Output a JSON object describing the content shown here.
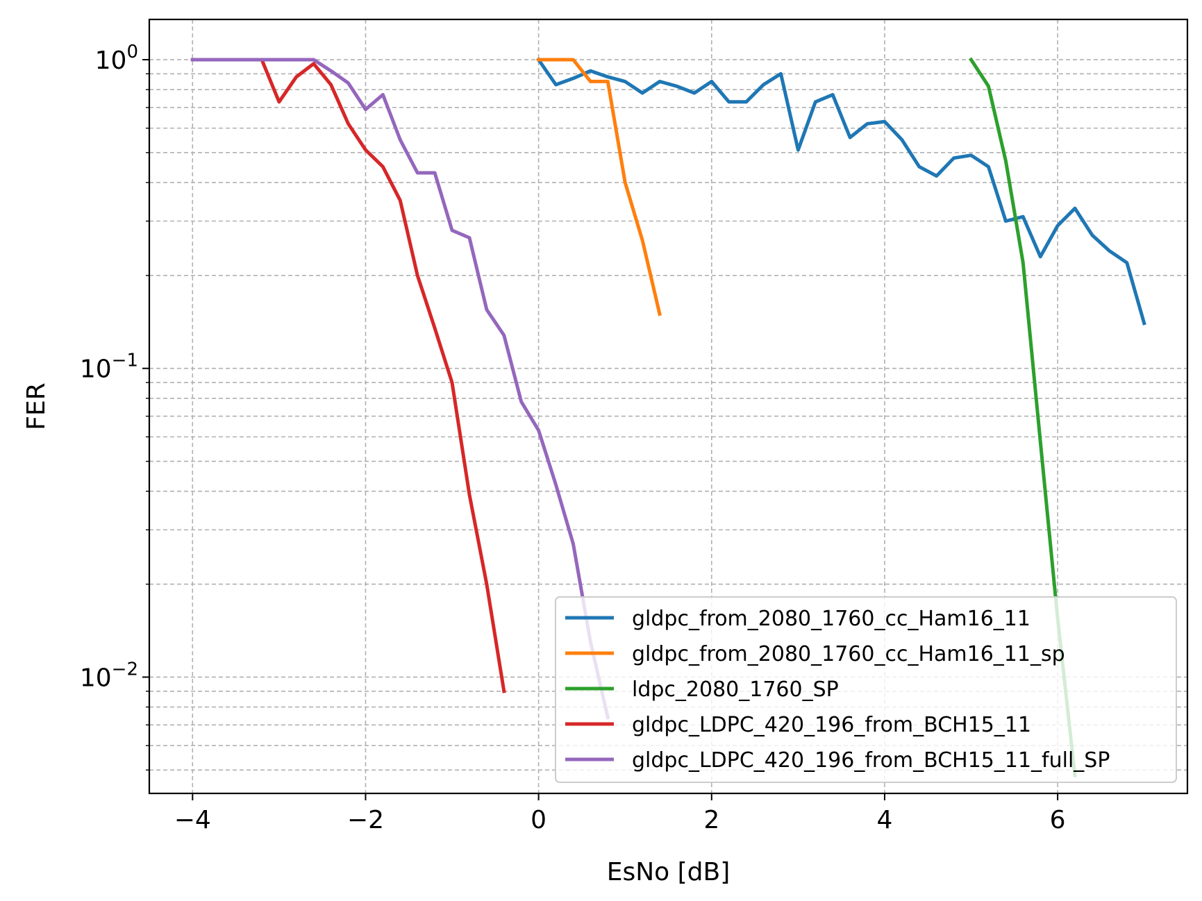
{
  "chart_data": {
    "type": "line",
    "title": "",
    "xlabel": "EsNo [dB]",
    "ylabel": "FER",
    "xlim": [
      -4.5,
      7.5
    ],
    "ylim": [
      0.0042,
      1.35
    ],
    "yscale": "log",
    "grid": true,
    "legend_position": "lower-right",
    "x_ticks": [
      {
        "value": -4,
        "label": "−4"
      },
      {
        "value": -2,
        "label": "−2"
      },
      {
        "value": 0,
        "label": "0"
      },
      {
        "value": 2,
        "label": "2"
      },
      {
        "value": 4,
        "label": "4"
      },
      {
        "value": 6,
        "label": "6"
      }
    ],
    "y_ticks": [
      {
        "value": 1,
        "base": "10",
        "exp": "0"
      },
      {
        "value": 0.1,
        "base": "10",
        "exp": "−1"
      },
      {
        "value": 0.01,
        "base": "10",
        "exp": "−2"
      }
    ],
    "series": [
      {
        "name": "gldpc_from_2080_1760_cc_Ham16_11",
        "color": "#1f77b4",
        "x": [
          0,
          0.2,
          0.4,
          0.6,
          0.8,
          1.0,
          1.2,
          1.4,
          1.6,
          1.8,
          2.0,
          2.2,
          2.4,
          2.6,
          2.8,
          3.0,
          3.2,
          3.4,
          3.6,
          3.8,
          4.0,
          4.2,
          4.4,
          4.6,
          4.8,
          5.0,
          5.2,
          5.4,
          5.6,
          5.8,
          6.0,
          6.2,
          6.4,
          6.6,
          6.8,
          7.0
        ],
        "y": [
          1.0,
          0.83,
          0.87,
          0.92,
          0.88,
          0.85,
          0.78,
          0.85,
          0.82,
          0.78,
          0.85,
          0.73,
          0.73,
          0.83,
          0.9,
          0.51,
          0.73,
          0.77,
          0.56,
          0.62,
          0.63,
          0.55,
          0.45,
          0.42,
          0.48,
          0.49,
          0.45,
          0.3,
          0.31,
          0.23,
          0.29,
          0.33,
          0.27,
          0.24,
          0.22,
          0.14
        ]
      },
      {
        "name": "gldpc_from_2080_1760_cc_Ham16_11_sp",
        "color": "#ff7f0e",
        "x": [
          0,
          0.2,
          0.4,
          0.6,
          0.8,
          1.0,
          1.2,
          1.4
        ],
        "y": [
          1.0,
          1.0,
          1.0,
          0.85,
          0.85,
          0.4,
          0.26,
          0.15
        ]
      },
      {
        "name": "ldpc_2080_1760_SP",
        "color": "#2ca02c",
        "x": [
          5.0,
          5.2,
          5.4,
          5.6,
          5.8,
          6.0,
          6.2
        ],
        "y": [
          1.0,
          0.82,
          0.47,
          0.22,
          0.058,
          0.0155,
          0.0048
        ]
      },
      {
        "name": "gldpc_LDPC_420_196_from_BCH15_11",
        "color": "#d62728",
        "x": [
          -4.0,
          -3.8,
          -3.6,
          -3.4,
          -3.2,
          -3.0,
          -2.8,
          -2.6,
          -2.4,
          -2.2,
          -2.0,
          -1.8,
          -1.6,
          -1.4,
          -1.2,
          -1.0,
          -0.8,
          -0.6,
          -0.4
        ],
        "y": [
          1.0,
          1.0,
          1.0,
          1.0,
          1.0,
          0.73,
          0.88,
          0.97,
          0.83,
          0.62,
          0.51,
          0.45,
          0.35,
          0.2,
          0.135,
          0.09,
          0.039,
          0.02,
          0.009
        ]
      },
      {
        "name": "gldpc_LDPC_420_196_from_BCH15_11_full_SP",
        "color": "#9467bd",
        "x": [
          -4.0,
          -3.8,
          -3.6,
          -3.4,
          -3.2,
          -3.0,
          -2.8,
          -2.6,
          -2.4,
          -2.2,
          -2.0,
          -1.8,
          -1.6,
          -1.4,
          -1.2,
          -1.0,
          -0.8,
          -0.6,
          -0.4,
          -0.2,
          0.0,
          0.2,
          0.4,
          0.6,
          0.8
        ],
        "y": [
          1.0,
          1.0,
          1.0,
          1.0,
          1.0,
          1.0,
          1.0,
          1.0,
          0.92,
          0.84,
          0.69,
          0.77,
          0.55,
          0.43,
          0.43,
          0.28,
          0.265,
          0.155,
          0.128,
          0.078,
          0.063,
          0.042,
          0.027,
          0.013,
          0.0074
        ]
      }
    ]
  }
}
